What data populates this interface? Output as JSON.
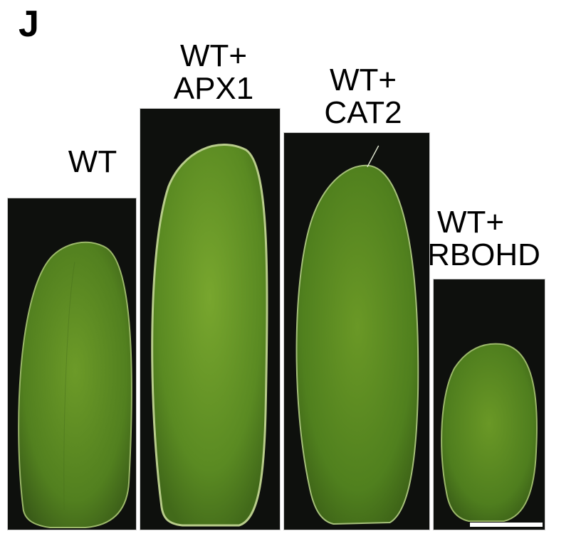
{
  "panel": {
    "letter": "J"
  },
  "samples": [
    {
      "id": "wt",
      "label_lines": [
        "WT"
      ]
    },
    {
      "id": "wt-apx1",
      "label_lines": [
        "WT+",
        "APX1"
      ]
    },
    {
      "id": "wt-cat2",
      "label_lines": [
        "WT+",
        "CAT2"
      ]
    },
    {
      "id": "wt-rbohd",
      "label_lines": [
        "WT+",
        "RBOHD"
      ]
    }
  ],
  "colors": {
    "background": "#0e100d",
    "petal_green": "#5a8a22",
    "scale_bar": "#ffffff"
  }
}
